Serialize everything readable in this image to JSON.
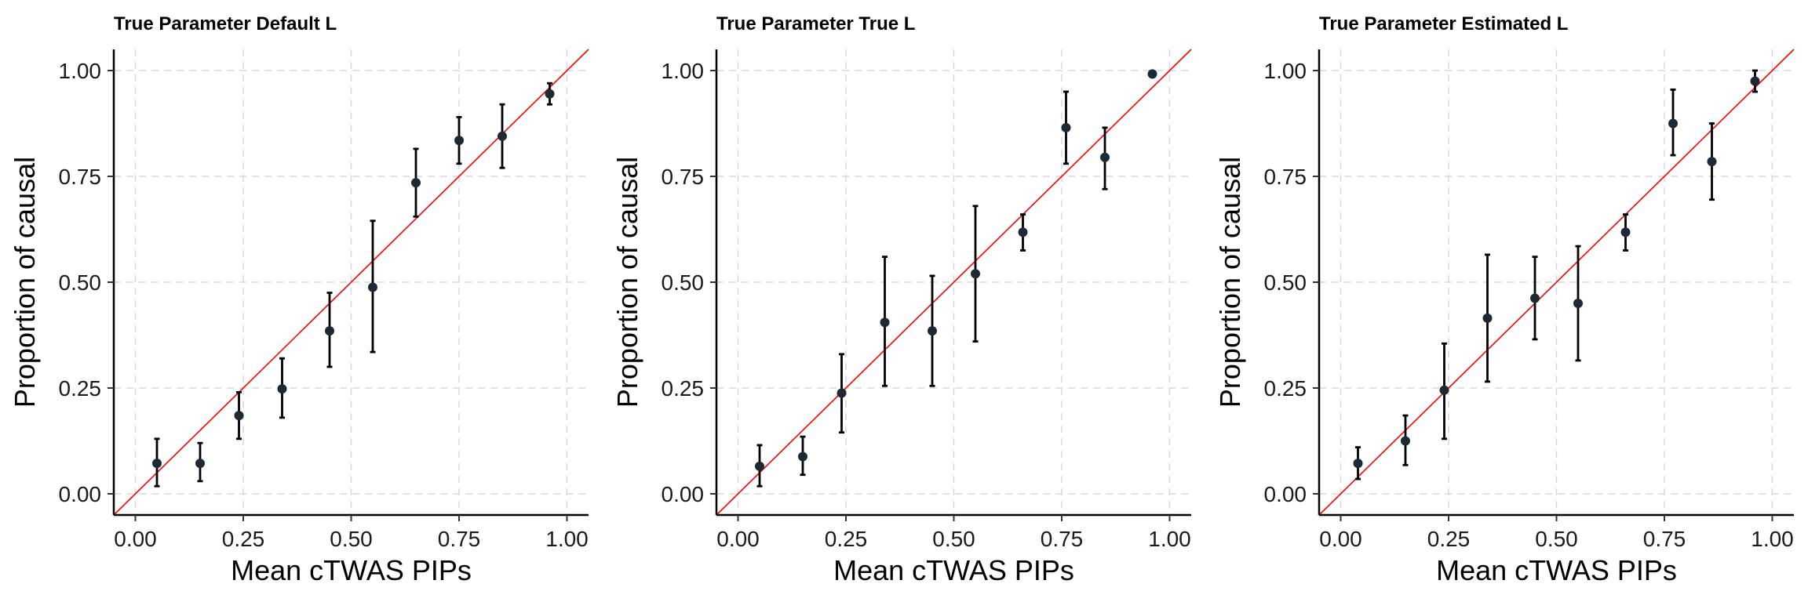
{
  "chart_data": [
    {
      "type": "scatter",
      "title": "True Parameter Default L",
      "xlabel": "Mean cTWAS PIPs",
      "ylabel": "Proportion of causal",
      "xlim": [
        -0.05,
        1.05
      ],
      "ylim": [
        -0.05,
        1.05
      ],
      "xticks": [
        "0.00",
        "0.25",
        "0.50",
        "0.75",
        "1.00"
      ],
      "yticks": [
        "0.00",
        "0.25",
        "0.50",
        "0.75",
        "1.00"
      ],
      "grid": true,
      "reference_line": "y = x",
      "colors": {
        "points": "#1b2a33",
        "error_bars": "#000000",
        "reference_line": "#ff0000",
        "grid": "#d9d9d9"
      },
      "series": [
        {
          "x": [
            0.05,
            0.15,
            0.24,
            0.34,
            0.45,
            0.55,
            0.65,
            0.75,
            0.85,
            0.96
          ],
          "y": [
            0.072,
            0.072,
            0.185,
            0.248,
            0.385,
            0.488,
            0.735,
            0.835,
            0.845,
            0.945
          ],
          "y_low": [
            0.018,
            0.03,
            0.13,
            0.18,
            0.3,
            0.335,
            0.655,
            0.78,
            0.77,
            0.92
          ],
          "y_high": [
            0.13,
            0.12,
            0.24,
            0.32,
            0.475,
            0.645,
            0.815,
            0.89,
            0.92,
            0.97
          ]
        }
      ]
    },
    {
      "type": "scatter",
      "title": "True Parameter True L",
      "xlabel": "Mean cTWAS PIPs",
      "ylabel": "Proportion of causal",
      "xlim": [
        -0.05,
        1.05
      ],
      "ylim": [
        -0.05,
        1.05
      ],
      "xticks": [
        "0.00",
        "0.25",
        "0.50",
        "0.75",
        "1.00"
      ],
      "yticks": [
        "0.00",
        "0.25",
        "0.50",
        "0.75",
        "1.00"
      ],
      "grid": true,
      "reference_line": "y = x",
      "colors": {
        "points": "#1b2a33",
        "error_bars": "#000000",
        "reference_line": "#ff0000",
        "grid": "#d9d9d9"
      },
      "series": [
        {
          "x": [
            0.05,
            0.15,
            0.24,
            0.34,
            0.45,
            0.55,
            0.66,
            0.76,
            0.85,
            0.96
          ],
          "y": [
            0.065,
            0.088,
            0.238,
            0.405,
            0.385,
            0.52,
            0.618,
            0.865,
            0.795,
            0.992
          ],
          "y_low": [
            0.018,
            0.045,
            0.145,
            0.255,
            0.255,
            0.36,
            0.575,
            0.78,
            0.72,
            0.992
          ],
          "y_high": [
            0.115,
            0.135,
            0.33,
            0.56,
            0.515,
            0.68,
            0.66,
            0.95,
            0.865,
            0.992
          ]
        }
      ]
    },
    {
      "type": "scatter",
      "title": "True Parameter Estimated L",
      "xlabel": "Mean cTWAS PIPs",
      "ylabel": "Proportion of causal",
      "xlim": [
        -0.05,
        1.05
      ],
      "ylim": [
        -0.05,
        1.05
      ],
      "xticks": [
        "0.00",
        "0.25",
        "0.50",
        "0.75",
        "1.00"
      ],
      "yticks": [
        "0.00",
        "0.25",
        "0.50",
        "0.75",
        "1.00"
      ],
      "grid": true,
      "reference_line": "y = x",
      "colors": {
        "points": "#1b2a33",
        "error_bars": "#000000",
        "reference_line": "#ff0000",
        "grid": "#d9d9d9"
      },
      "series": [
        {
          "x": [
            0.04,
            0.15,
            0.24,
            0.34,
            0.45,
            0.55,
            0.66,
            0.77,
            0.86,
            0.96
          ],
          "y": [
            0.072,
            0.125,
            0.245,
            0.415,
            0.462,
            0.45,
            0.618,
            0.875,
            0.785,
            0.975
          ],
          "y_low": [
            0.035,
            0.068,
            0.13,
            0.265,
            0.365,
            0.315,
            0.575,
            0.8,
            0.695,
            0.95
          ],
          "y_high": [
            0.11,
            0.185,
            0.355,
            0.565,
            0.56,
            0.585,
            0.66,
            0.955,
            0.875,
            1.0
          ]
        }
      ]
    }
  ]
}
